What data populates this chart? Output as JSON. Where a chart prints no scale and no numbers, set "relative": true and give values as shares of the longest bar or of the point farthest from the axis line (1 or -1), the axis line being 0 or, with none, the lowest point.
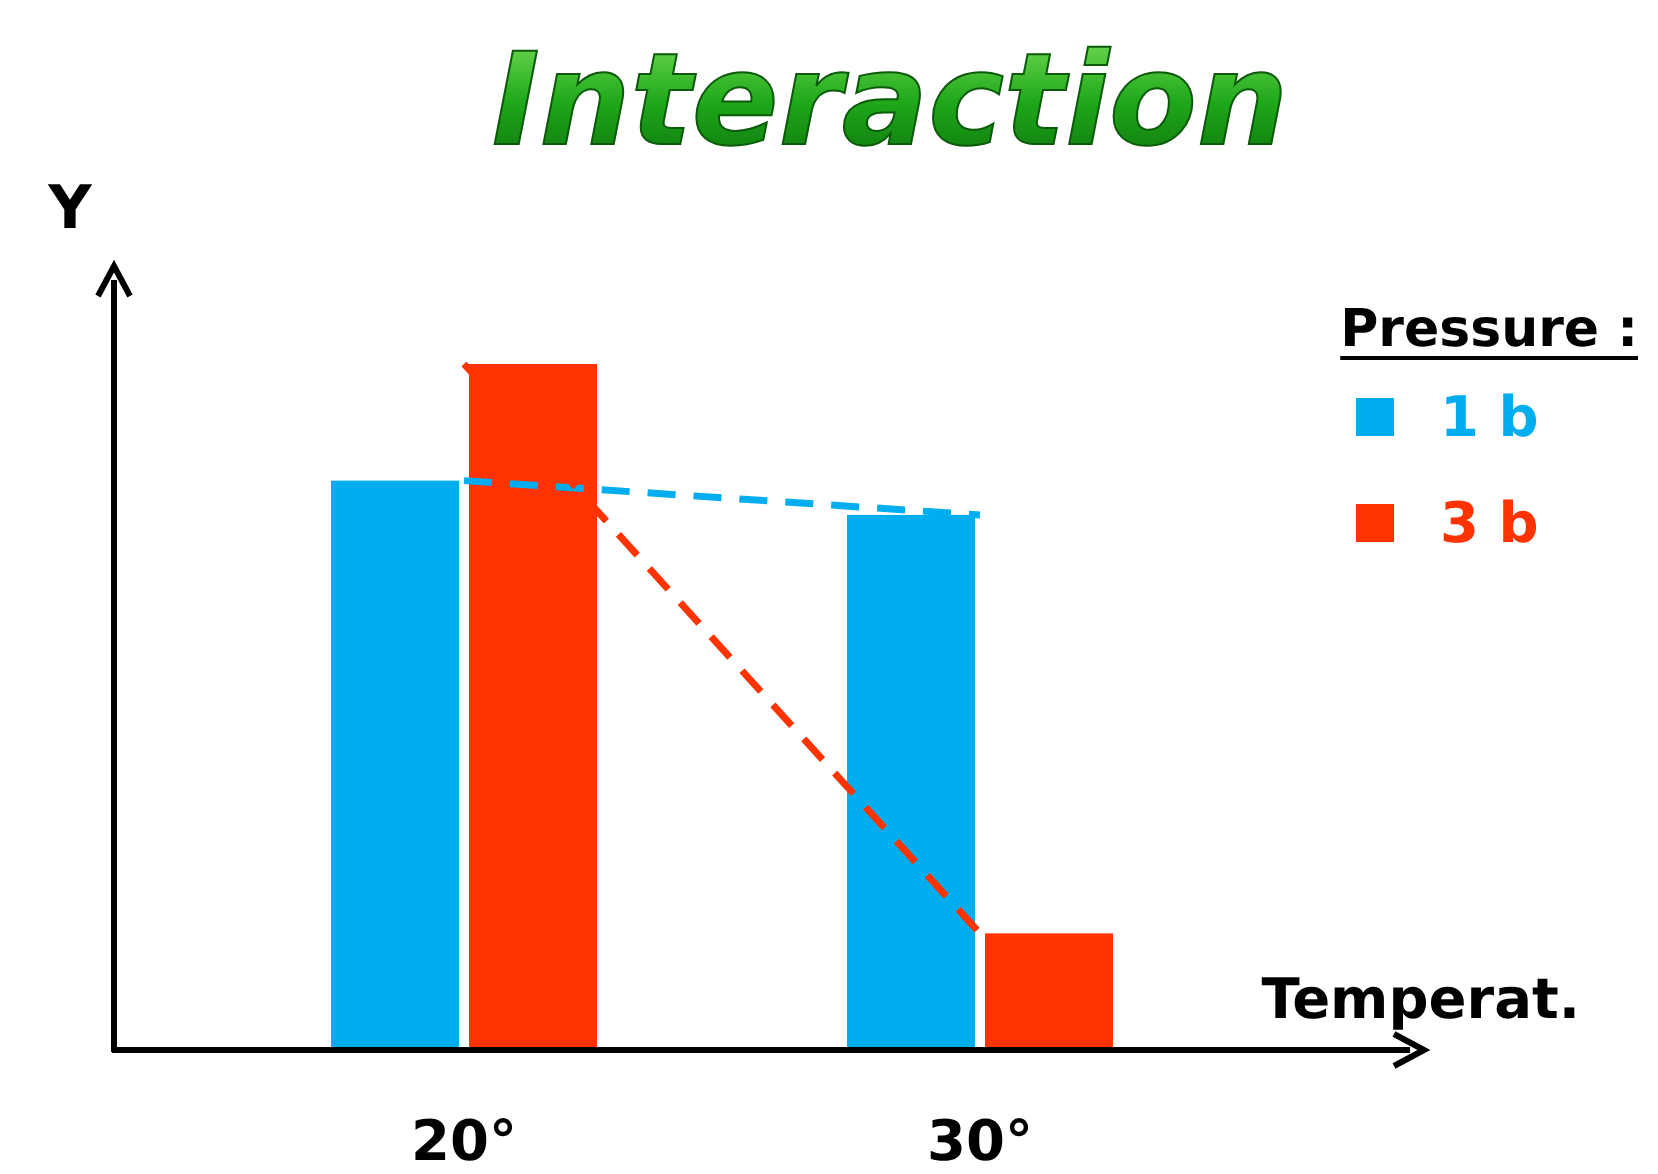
{
  "chart_data": {
    "type": "bar",
    "title": "Interaction",
    "xlabel": "Temperat.",
    "ylabel": "Y",
    "legend_title": "Pressure :",
    "relative": true,
    "legend": "top right",
    "categories": [
      "20°",
      "30°"
    ],
    "series": [
      {
        "name": "1 b",
        "color": "#00aeef",
        "values": [
          0.83,
          0.78
        ]
      },
      {
        "name": "3 b",
        "color": "#ff3300",
        "values": [
          1,
          0.17
        ]
      },
      {
        "type": "line",
        "color": "#00aeef",
        "line_style": "dashed",
        "values": [
          0.83,
          0.78
        ]
      },
      {
        "type": "line",
        "color": "#ff3300",
        "line_style": "dashed",
        "values": [
          1,
          0.17
        ]
      }
    ]
  }
}
